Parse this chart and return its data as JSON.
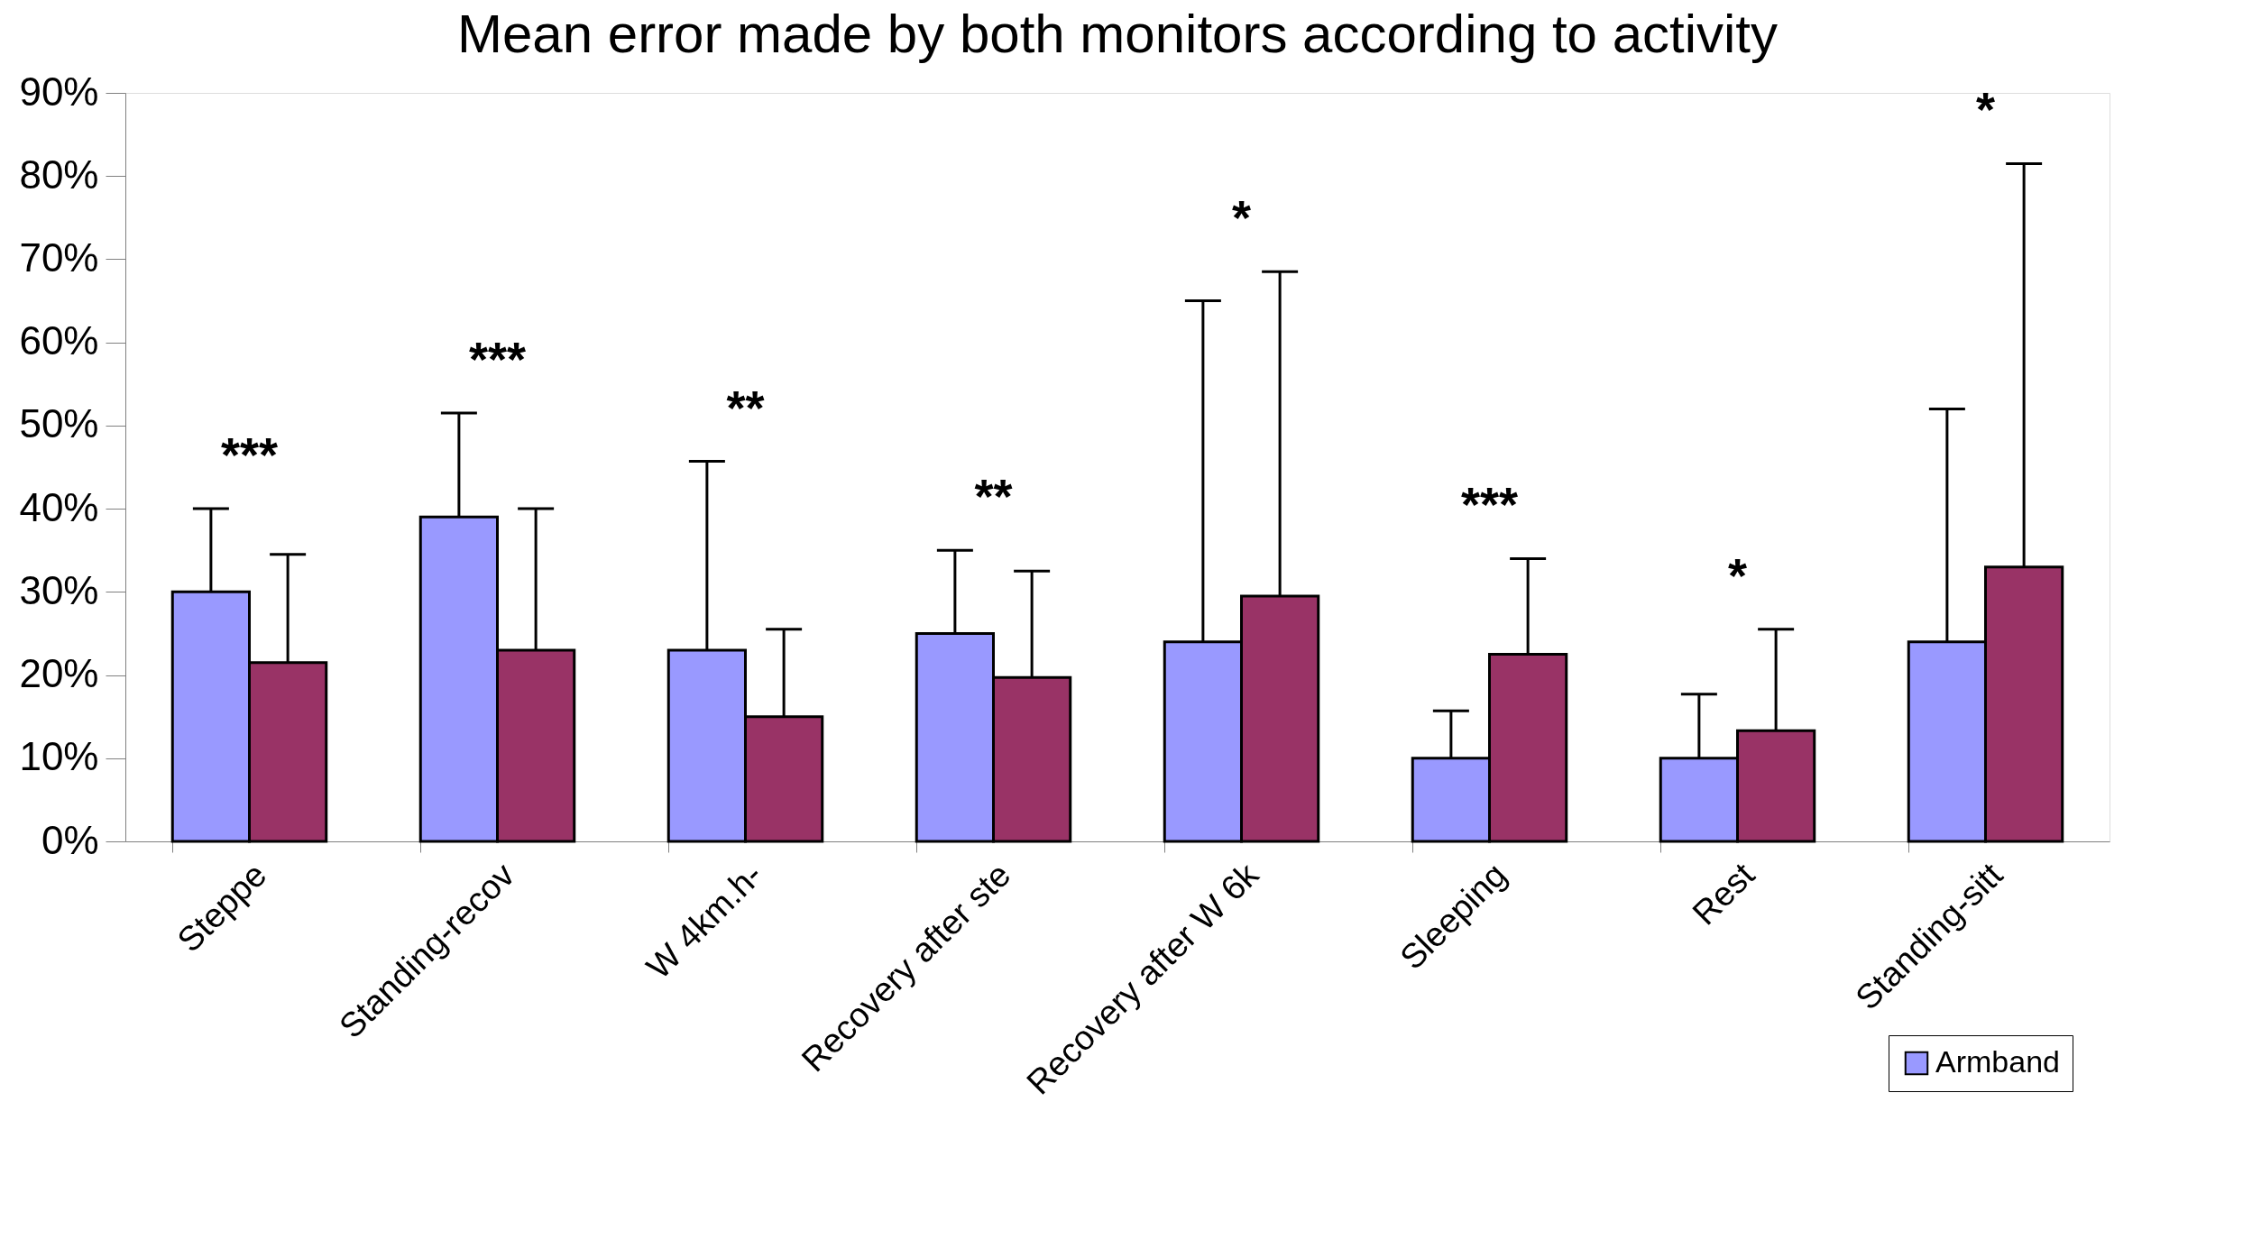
{
  "chart_data": {
    "type": "bar",
    "title": "Mean error made by both monitors according to activity",
    "categories": [
      "Steppe",
      "Standing-recov",
      "W 4km.h-",
      "Recovery after ste",
      "Recovery after W 6k",
      "Sleeping",
      "Rest",
      "Standing-sitt"
    ],
    "series": [
      {
        "name": "Armband",
        "color": "#9999ff",
        "values": [
          30,
          39,
          23,
          25,
          24,
          10,
          10,
          24
        ],
        "errors": [
          [
            30,
            40
          ],
          [
            39,
            51.5
          ],
          [
            23,
            45.7
          ],
          [
            25,
            35
          ],
          [
            24,
            65
          ],
          [
            10,
            15.7
          ],
          [
            10,
            17.7
          ],
          [
            24,
            52
          ]
        ]
      },
      {
        "color": "#993366",
        "values": [
          21.5,
          23,
          15,
          19.7,
          29.5,
          22.5,
          13.3,
          33
        ],
        "errors": [
          [
            21.5,
            34.5
          ],
          [
            23,
            40
          ],
          [
            15,
            25.5
          ],
          [
            19.7,
            32.5
          ],
          [
            29.5,
            68.5
          ],
          [
            22.5,
            34
          ],
          [
            13.3,
            25.5
          ],
          [
            33,
            81.5
          ]
        ]
      }
    ],
    "ylim": [
      0,
      90
    ],
    "yticks": [
      {
        "value": 0,
        "label": "0%"
      },
      {
        "value": 10,
        "label": "10%"
      },
      {
        "value": 20,
        "label": "20%"
      },
      {
        "value": 30,
        "label": "30%"
      },
      {
        "value": 40,
        "label": "40%"
      },
      {
        "value": 50,
        "label": "50%"
      },
      {
        "value": 60,
        "label": "60%"
      },
      {
        "value": 70,
        "label": "70%"
      },
      {
        "value": 80,
        "label": "80%"
      },
      {
        "value": 90,
        "label": "90%"
      }
    ],
    "annotations": [
      "***",
      "***",
      "**",
      "**",
      "*",
      "***",
      "*",
      "*"
    ],
    "legend": "bottom right"
  }
}
